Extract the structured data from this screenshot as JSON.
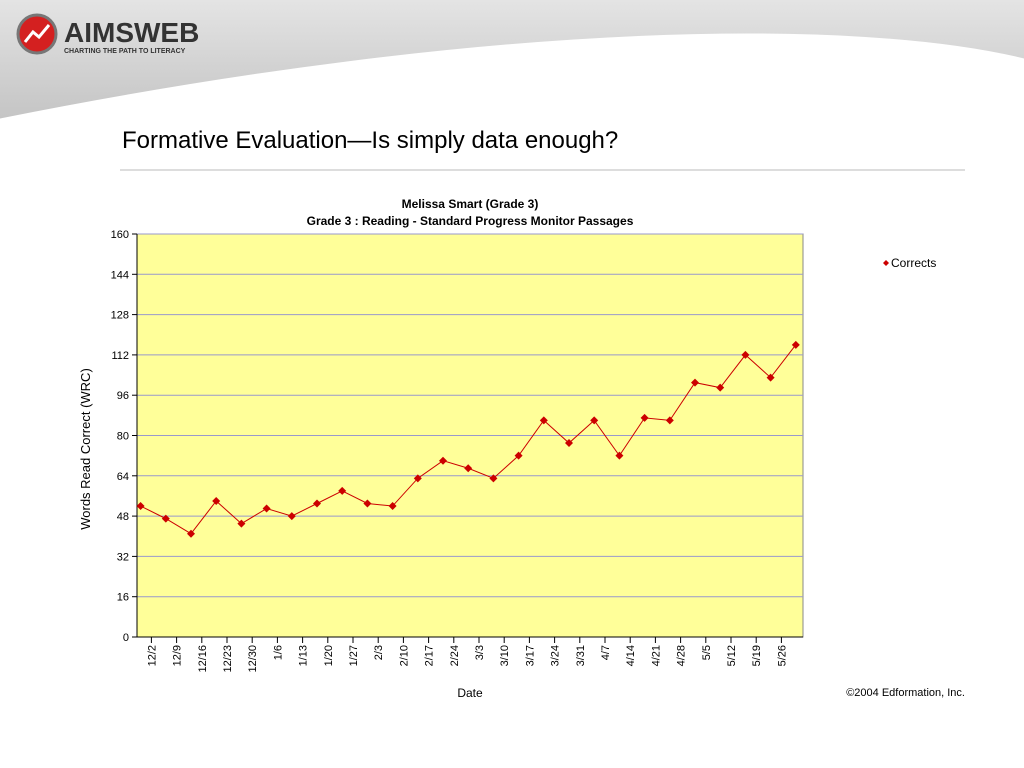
{
  "header": {
    "logo": "AIMSWEB",
    "tagline": "CHARTING THE PATH TO LITERACY",
    "title": "Formative Evaluation—Is simply data enough?"
  },
  "chart_data": {
    "type": "line",
    "title": "Melissa Smart (Grade 3)",
    "subtitle": "Grade 3 : Reading - Standard Progress Monitor Passages",
    "xlabel": "Date",
    "ylabel": "Words Read Correct (WRC)",
    "x": [
      1,
      8,
      15,
      22,
      29,
      36,
      43,
      50,
      57,
      64,
      71,
      78,
      85,
      92,
      99,
      106,
      113,
      120,
      127,
      134,
      141,
      148,
      155,
      162,
      169,
      176,
      183
    ],
    "series": [
      {
        "name": "Corrects",
        "color": "#cc0000",
        "values": [
          52,
          47,
          41,
          54,
          45,
          51,
          48,
          53,
          58,
          53,
          52,
          63,
          70,
          67,
          63,
          72,
          86,
          77,
          86,
          72,
          87,
          86,
          101,
          99,
          112,
          103,
          116
        ]
      }
    ],
    "xlim": [
      0,
      185
    ],
    "xticks": [
      {
        "value": 4,
        "label": "12/2"
      },
      {
        "value": 11,
        "label": "12/9"
      },
      {
        "value": 18,
        "label": "12/16"
      },
      {
        "value": 25,
        "label": "12/23"
      },
      {
        "value": 32,
        "label": "12/30"
      },
      {
        "value": 39,
        "label": "1/6"
      },
      {
        "value": 46,
        "label": "1/13"
      },
      {
        "value": 53,
        "label": "1/20"
      },
      {
        "value": 60,
        "label": "1/27"
      },
      {
        "value": 67,
        "label": "2/3"
      },
      {
        "value": 74,
        "label": "2/10"
      },
      {
        "value": 81,
        "label": "2/17"
      },
      {
        "value": 88,
        "label": "2/24"
      },
      {
        "value": 95,
        "label": "3/3"
      },
      {
        "value": 102,
        "label": "3/10"
      },
      {
        "value": 109,
        "label": "3/17"
      },
      {
        "value": 116,
        "label": "3/24"
      },
      {
        "value": 123,
        "label": "3/31"
      },
      {
        "value": 130,
        "label": "4/7"
      },
      {
        "value": 137,
        "label": "4/14"
      },
      {
        "value": 144,
        "label": "4/21"
      },
      {
        "value": 151,
        "label": "4/28"
      },
      {
        "value": 158,
        "label": "5/5"
      },
      {
        "value": 165,
        "label": "5/12"
      },
      {
        "value": 172,
        "label": "5/19"
      },
      {
        "value": 179,
        "label": "5/26"
      }
    ],
    "ylim": [
      0,
      160
    ],
    "yticks": [
      0,
      16,
      32,
      48,
      64,
      80,
      96,
      112,
      128,
      144,
      160
    ],
    "grid": true,
    "plot_background": "#ffff99",
    "legend": "right",
    "copyright": "©2004 Edformation, Inc."
  }
}
